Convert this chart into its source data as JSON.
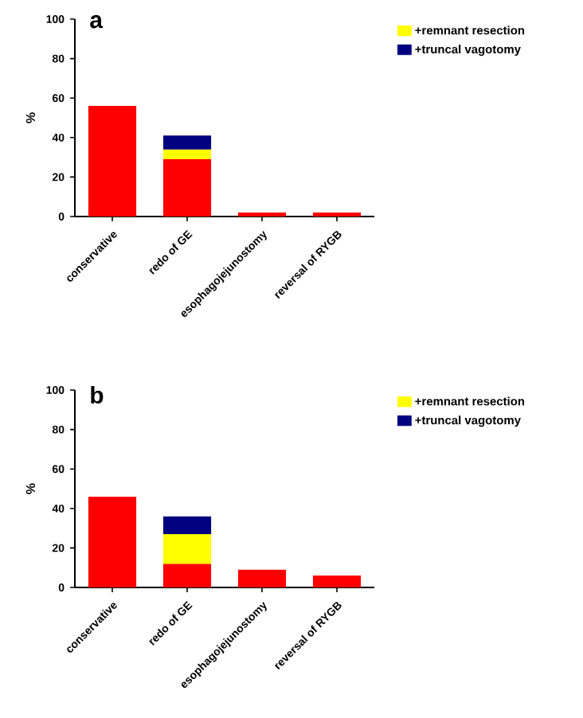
{
  "chart_data": [
    {
      "type": "bar",
      "title": "a",
      "ylabel": "%",
      "categories": [
        "conservative",
        "redo of GE",
        "esophagojejunostomy",
        "reversal of RYGB"
      ],
      "stacked": true,
      "ylim": [
        0,
        100
      ],
      "yticks": [
        0,
        20,
        40,
        60,
        80,
        100
      ],
      "legend": "right",
      "series": [
        {
          "color": "#ff0000",
          "values": [
            56,
            29,
            2,
            2
          ]
        },
        {
          "name": "+remnant resection",
          "color": "#ffff00",
          "values": [
            null,
            5,
            null,
            null
          ]
        },
        {
          "name": "+truncal vagotomy",
          "color": "#000080",
          "values": [
            null,
            7,
            null,
            null
          ]
        }
      ]
    },
    {
      "type": "bar",
      "title": "b",
      "ylabel": "%",
      "categories": [
        "conservative",
        "redo of GE",
        "esophagojejunostomy",
        "reversal of RYGB"
      ],
      "stacked": true,
      "ylim": [
        0,
        100
      ],
      "yticks": [
        0,
        20,
        40,
        60,
        80,
        100
      ],
      "legend": "right",
      "series": [
        {
          "color": "#ff0000",
          "values": [
            46,
            12,
            9,
            6
          ]
        },
        {
          "name": "+remnant resection",
          "color": "#ffff00",
          "values": [
            null,
            15,
            null,
            null
          ]
        },
        {
          "name": "+truncal vagotomy",
          "color": "#000080",
          "values": [
            null,
            9,
            null,
            null
          ]
        }
      ]
    }
  ]
}
